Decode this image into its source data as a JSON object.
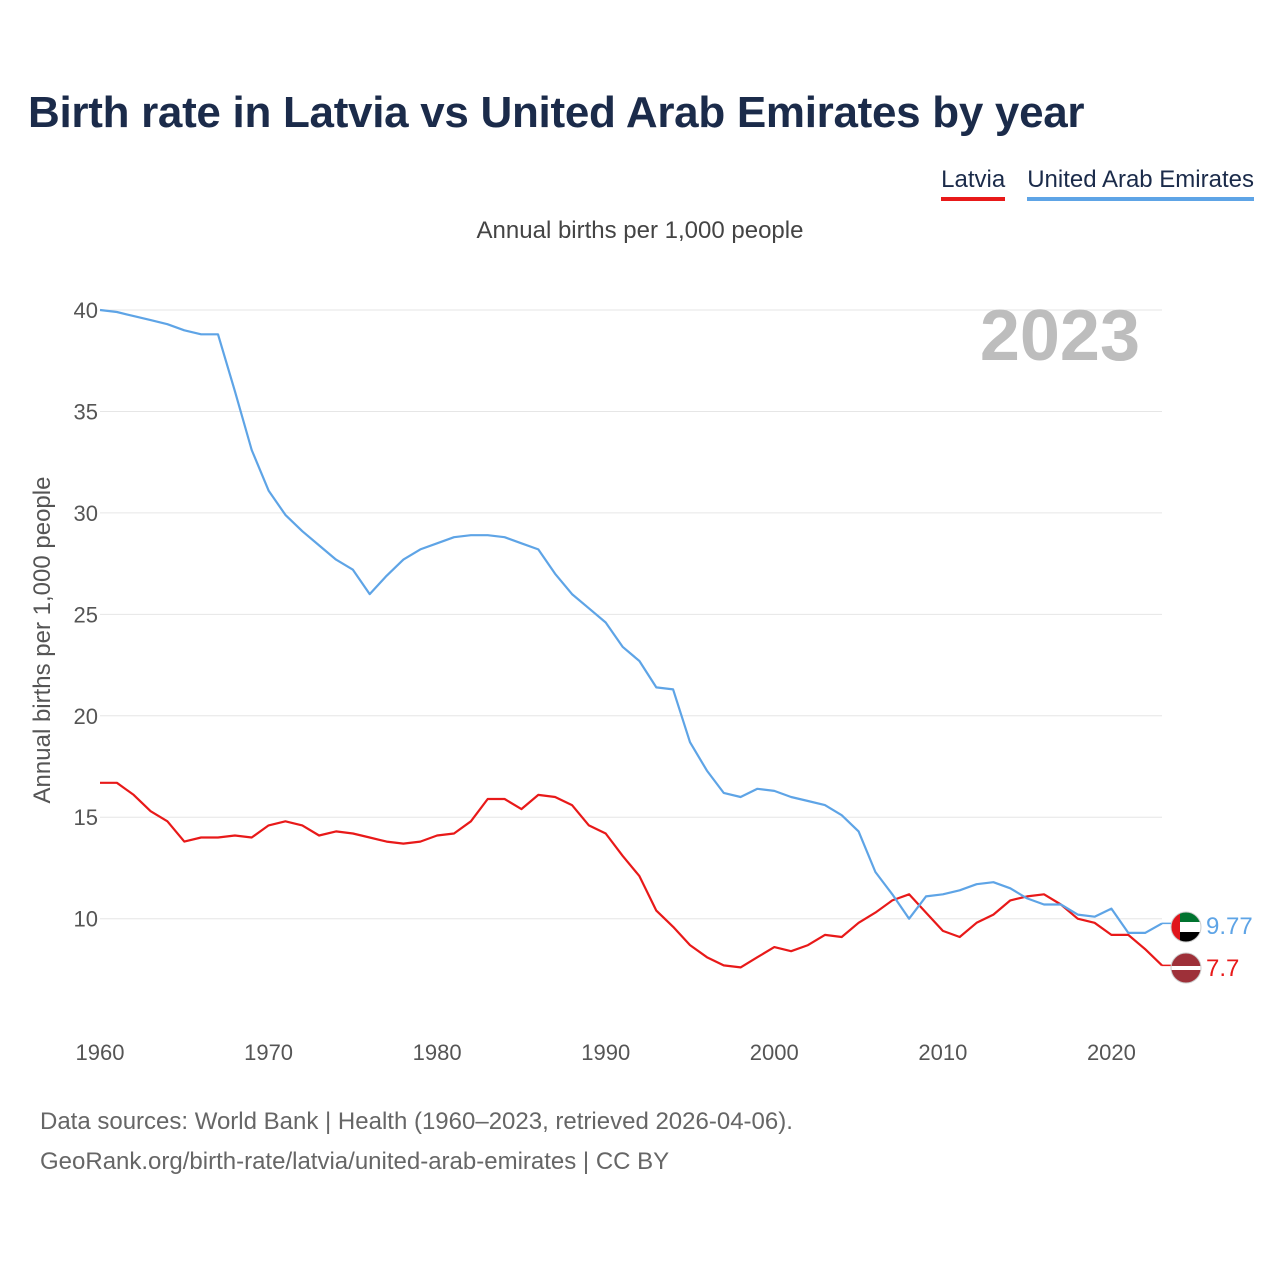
{
  "title": "Birth rate in Latvia vs United Arab Emirates by year",
  "legend": [
    {
      "name": "Latvia",
      "color": "#e81919"
    },
    {
      "name": "United Arab Emirates",
      "color": "#5ea4e6"
    }
  ],
  "subtitle": "Annual births per 1,000 people",
  "year_label": "2023",
  "footer": {
    "line1": "Data sources: World Bank | Health (1960–2023, retrieved 2026-04-06).",
    "line2": "GeoRank.org/birth-rate/latvia/united-arab-emirates | CC BY"
  },
  "chart_data": {
    "type": "line",
    "title": "Birth rate in Latvia vs United Arab Emirates by year",
    "xlabel": "",
    "ylabel": "Annual births per 1,000 people",
    "xlim": [
      1960,
      2023
    ],
    "ylim": [
      5.5,
      40
    ],
    "x_ticks": [
      1960,
      1970,
      1980,
      1990,
      2000,
      2010,
      2020
    ],
    "y_ticks": [
      10,
      15,
      20,
      25,
      30,
      35,
      40
    ],
    "grid": true,
    "series": [
      {
        "name": "Latvia",
        "color": "#e81919",
        "end_label": "7.7",
        "x": [
          1960,
          1961,
          1962,
          1963,
          1964,
          1965,
          1966,
          1967,
          1968,
          1969,
          1970,
          1971,
          1972,
          1973,
          1974,
          1975,
          1976,
          1977,
          1978,
          1979,
          1980,
          1981,
          1982,
          1983,
          1984,
          1985,
          1986,
          1987,
          1988,
          1989,
          1990,
          1991,
          1992,
          1993,
          1994,
          1995,
          1996,
          1997,
          1998,
          1999,
          2000,
          2001,
          2002,
          2003,
          2004,
          2005,
          2006,
          2007,
          2008,
          2009,
          2010,
          2011,
          2012,
          2013,
          2014,
          2015,
          2016,
          2017,
          2018,
          2019,
          2020,
          2021,
          2022,
          2023
        ],
        "values": [
          16.7,
          16.7,
          16.1,
          15.3,
          14.8,
          13.8,
          14.0,
          14.0,
          14.1,
          14.0,
          14.6,
          14.8,
          14.6,
          14.1,
          14.3,
          14.2,
          14.0,
          13.8,
          13.7,
          13.8,
          14.1,
          14.2,
          14.8,
          15.9,
          15.9,
          15.4,
          16.1,
          16.0,
          15.6,
          14.6,
          14.2,
          13.1,
          12.1,
          10.4,
          9.6,
          8.7,
          8.1,
          7.7,
          7.6,
          8.1,
          8.6,
          8.4,
          8.7,
          9.2,
          9.1,
          9.8,
          10.3,
          10.9,
          11.2,
          10.3,
          9.4,
          9.1,
          9.8,
          10.2,
          10.9,
          11.1,
          11.2,
          10.7,
          10.0,
          9.8,
          9.2,
          9.2,
          8.5,
          7.7
        ]
      },
      {
        "name": "United Arab Emirates",
        "color": "#5ea4e6",
        "end_label": "9.77",
        "x": [
          1960,
          1961,
          1962,
          1963,
          1964,
          1965,
          1966,
          1967,
          1968,
          1969,
          1970,
          1971,
          1972,
          1973,
          1974,
          1975,
          1976,
          1977,
          1978,
          1979,
          1980,
          1981,
          1982,
          1983,
          1984,
          1985,
          1986,
          1987,
          1988,
          1989,
          1990,
          1991,
          1992,
          1993,
          1994,
          1995,
          1996,
          1997,
          1998,
          1999,
          2000,
          2001,
          2002,
          2003,
          2004,
          2005,
          2006,
          2007,
          2008,
          2009,
          2010,
          2011,
          2012,
          2013,
          2014,
          2015,
          2016,
          2017,
          2018,
          2019,
          2020,
          2021,
          2022,
          2023
        ],
        "values": [
          40.0,
          39.9,
          39.7,
          39.5,
          39.3,
          39.0,
          38.8,
          38.8,
          36.0,
          33.1,
          31.1,
          29.9,
          29.1,
          28.4,
          27.7,
          27.2,
          26.0,
          26.9,
          27.7,
          28.2,
          28.5,
          28.8,
          28.9,
          28.9,
          28.8,
          28.5,
          28.2,
          27.0,
          26.0,
          25.3,
          24.6,
          23.4,
          22.7,
          21.4,
          21.3,
          18.7,
          17.3,
          16.2,
          16.0,
          16.4,
          16.3,
          16.0,
          15.8,
          15.6,
          15.1,
          14.3,
          12.3,
          11.2,
          10.0,
          11.1,
          11.2,
          11.4,
          11.7,
          11.8,
          11.5,
          11.0,
          10.7,
          10.7,
          10.2,
          10.1,
          10.5,
          9.3,
          9.3,
          9.77
        ]
      }
    ]
  }
}
